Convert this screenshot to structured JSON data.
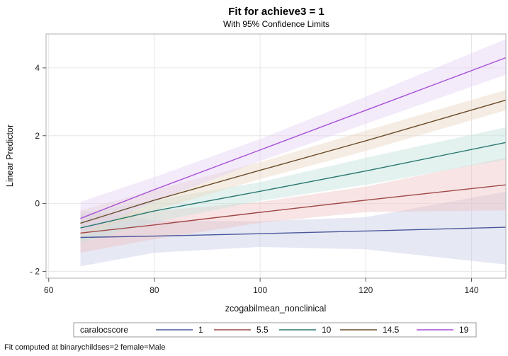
{
  "chart_data": {
    "type": "line",
    "title": "Fit for achieve3 = 1",
    "subtitle": "With 95% Confidence Limits",
    "xlabel": "zcogabilmean_nonclinical",
    "ylabel": "Linear Predictor",
    "xlim": [
      59.5,
      146.5
    ],
    "ylim": [
      -2.2,
      5.0
    ],
    "xticks": [
      60,
      80,
      100,
      120,
      140
    ],
    "yticks": [
      -2,
      0,
      2,
      4
    ],
    "grid": true,
    "legend": {
      "title": "caralocscore",
      "position": "bottom"
    },
    "footnote": "Fit computed at binarychildses=2 female=Male",
    "series": [
      {
        "name": "1",
        "color": "#4a5899",
        "band_color": "#c7cce6",
        "x": [
          66,
          80,
          100,
          120,
          146.5
        ],
        "y": [
          -1.0,
          -0.96,
          -0.89,
          -0.81,
          -0.7
        ],
        "lower": [
          -1.85,
          -1.45,
          -1.28,
          -1.35,
          -1.8
        ],
        "upper": [
          -0.2,
          -0.5,
          -0.52,
          -0.4,
          0.35
        ]
      },
      {
        "name": "5.5",
        "color": "#a04848",
        "band_color": "#f0c4c4",
        "x": [
          66,
          80,
          100,
          120,
          146.5
        ],
        "y": [
          -0.87,
          -0.63,
          -0.26,
          0.1,
          0.55
        ],
        "lower": [
          -1.45,
          -1.05,
          -0.57,
          -0.25,
          -0.2
        ],
        "upper": [
          -0.3,
          -0.22,
          0.05,
          0.5,
          1.35
        ]
      },
      {
        "name": "10",
        "color": "#2a7872",
        "band_color": "#c4e2dc",
        "x": [
          66,
          80,
          100,
          120,
          146.5
        ],
        "y": [
          -0.72,
          -0.22,
          0.36,
          0.96,
          1.8
        ],
        "lower": [
          -1.15,
          -0.55,
          0.08,
          0.55,
          1.3
        ],
        "upper": [
          -0.3,
          0.1,
          0.63,
          1.35,
          2.25
        ]
      },
      {
        "name": "14.5",
        "color": "#6b4b2a",
        "band_color": "#e8d6c0",
        "x": [
          66,
          80,
          100,
          120,
          146.5
        ],
        "y": [
          -0.58,
          0.1,
          0.98,
          1.85,
          3.05
        ],
        "lower": [
          -0.95,
          -0.2,
          0.72,
          1.55,
          2.75
        ],
        "upper": [
          -0.2,
          0.4,
          1.22,
          2.15,
          3.35
        ]
      },
      {
        "name": "19",
        "color": "#a64fd6",
        "band_color": "#e4d0f5",
        "x": [
          66,
          80,
          100,
          120,
          146.5
        ],
        "y": [
          -0.44,
          0.41,
          1.58,
          2.75,
          4.3
        ],
        "lower": [
          -0.9,
          0.05,
          1.25,
          2.35,
          3.8
        ],
        "upper": [
          0.05,
          0.78,
          1.9,
          3.15,
          4.85
        ]
      }
    ]
  }
}
